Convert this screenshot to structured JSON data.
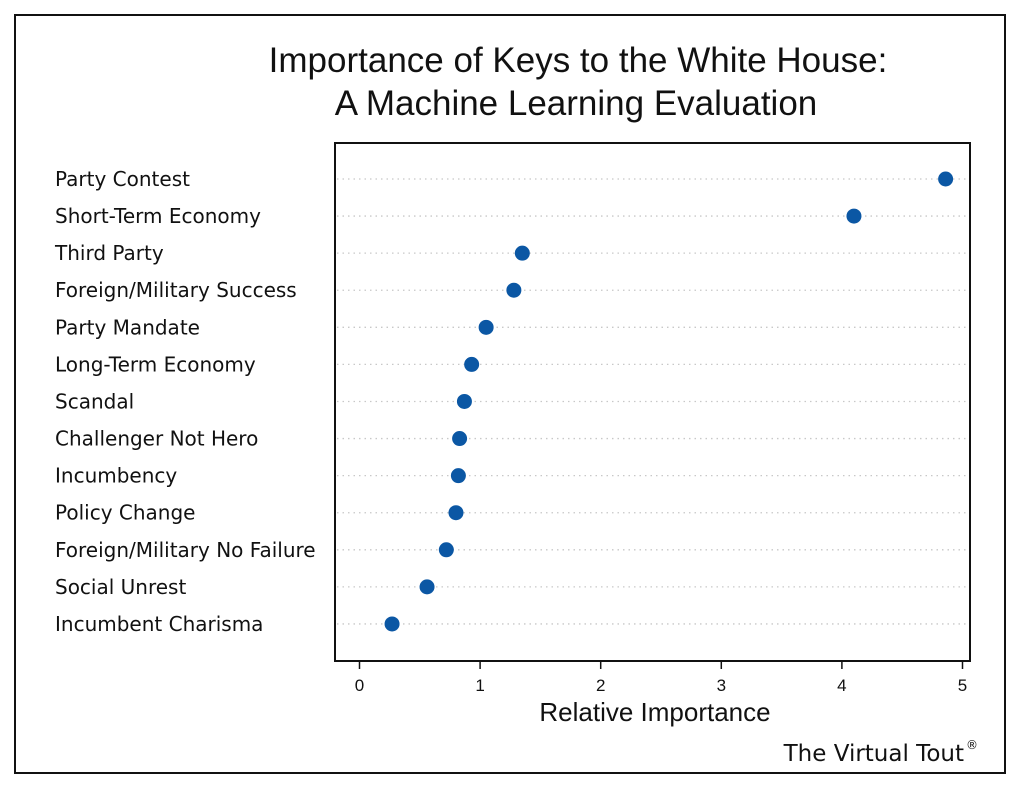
{
  "colors": {
    "point": "#0b57a4",
    "frame": "#111111",
    "guide": "#c8c8c8"
  },
  "chart_data": {
    "type": "scatter",
    "title_lines": [
      "Importance of Keys to the White House:",
      "A Machine Learning Evaluation"
    ],
    "xlabel": "Relative Importance",
    "ylabel": "",
    "xlim": [
      -0.2,
      5.07
    ],
    "xticks": [
      0,
      1,
      2,
      3,
      4,
      5
    ],
    "grid": "horizontal dotted guides per category",
    "categories": [
      "Party Contest",
      "Short-Term Economy",
      "Third Party",
      "Foreign/Military Success",
      "Party Mandate",
      "Long-Term Economy",
      "Scandal",
      "Challenger Not Hero",
      "Incumbency",
      "Policy Change",
      "Foreign/Military No Failure",
      "Social Unrest",
      "Incumbent Charisma"
    ],
    "values": [
      4.86,
      4.1,
      1.35,
      1.28,
      1.05,
      0.93,
      0.87,
      0.83,
      0.82,
      0.8,
      0.72,
      0.56,
      0.27
    ]
  },
  "watermark": {
    "text": "The Virtual Tout",
    "mark": "®"
  }
}
